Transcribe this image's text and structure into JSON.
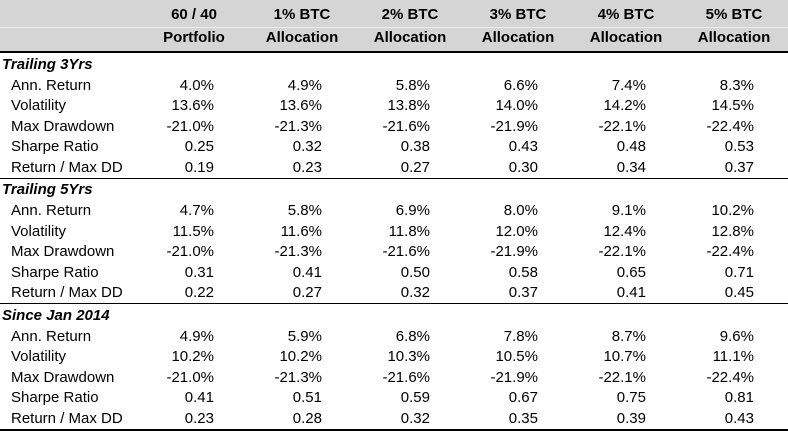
{
  "chart_data": {
    "type": "table",
    "title": "",
    "columns": [
      "60 / 40 Portfolio",
      "1% BTC Allocation",
      "2% BTC Allocation",
      "3% BTC Allocation",
      "4% BTC Allocation",
      "5% BTC Allocation"
    ],
    "sections": [
      {
        "label": "Trailing 3Yrs",
        "rows": [
          {
            "label": "Ann. Return",
            "values": [
              "4.0%",
              "4.9%",
              "5.8%",
              "6.6%",
              "7.4%",
              "8.3%"
            ]
          },
          {
            "label": "Volatility",
            "values": [
              "13.6%",
              "13.6%",
              "13.8%",
              "14.0%",
              "14.2%",
              "14.5%"
            ]
          },
          {
            "label": "Max Drawdown",
            "values": [
              "-21.0%",
              "-21.3%",
              "-21.6%",
              "-21.9%",
              "-22.1%",
              "-22.4%"
            ]
          },
          {
            "label": "Sharpe Ratio",
            "values": [
              "0.25",
              "0.32",
              "0.38",
              "0.43",
              "0.48",
              "0.53"
            ]
          },
          {
            "label": "Return / Max DD",
            "values": [
              "0.19",
              "0.23",
              "0.27",
              "0.30",
              "0.34",
              "0.37"
            ]
          }
        ]
      },
      {
        "label": "Trailing 5Yrs",
        "rows": [
          {
            "label": "Ann. Return",
            "values": [
              "4.7%",
              "5.8%",
              "6.9%",
              "8.0%",
              "9.1%",
              "10.2%"
            ]
          },
          {
            "label": "Volatility",
            "values": [
              "11.5%",
              "11.6%",
              "11.8%",
              "12.0%",
              "12.4%",
              "12.8%"
            ]
          },
          {
            "label": "Max Drawdown",
            "values": [
              "-21.0%",
              "-21.3%",
              "-21.6%",
              "-21.9%",
              "-22.1%",
              "-22.4%"
            ]
          },
          {
            "label": "Sharpe Ratio",
            "values": [
              "0.31",
              "0.41",
              "0.50",
              "0.58",
              "0.65",
              "0.71"
            ]
          },
          {
            "label": "Return / Max DD",
            "values": [
              "0.22",
              "0.27",
              "0.32",
              "0.37",
              "0.41",
              "0.45"
            ]
          }
        ]
      },
      {
        "label": "Since Jan 2014",
        "rows": [
          {
            "label": "Ann. Return",
            "values": [
              "4.9%",
              "5.9%",
              "6.8%",
              "7.8%",
              "8.7%",
              "9.6%"
            ]
          },
          {
            "label": "Volatility",
            "values": [
              "10.2%",
              "10.2%",
              "10.3%",
              "10.5%",
              "10.7%",
              "11.1%"
            ]
          },
          {
            "label": "Max Drawdown",
            "values": [
              "-21.0%",
              "-21.3%",
              "-21.6%",
              "-21.9%",
              "-22.1%",
              "-22.4%"
            ]
          },
          {
            "label": "Sharpe Ratio",
            "values": [
              "0.41",
              "0.51",
              "0.59",
              "0.67",
              "0.75",
              "0.81"
            ]
          },
          {
            "label": "Return / Max DD",
            "values": [
              "0.23",
              "0.28",
              "0.32",
              "0.35",
              "0.39",
              "0.43"
            ]
          }
        ]
      }
    ],
    "layout": {
      "header_two_line": true,
      "grid": "horizontal-rules-only",
      "legend": "none"
    }
  },
  "colors": {
    "header_bg": "#d5d5d5",
    "rule": "#000000",
    "text": "#000000",
    "background": "#ffffff"
  }
}
